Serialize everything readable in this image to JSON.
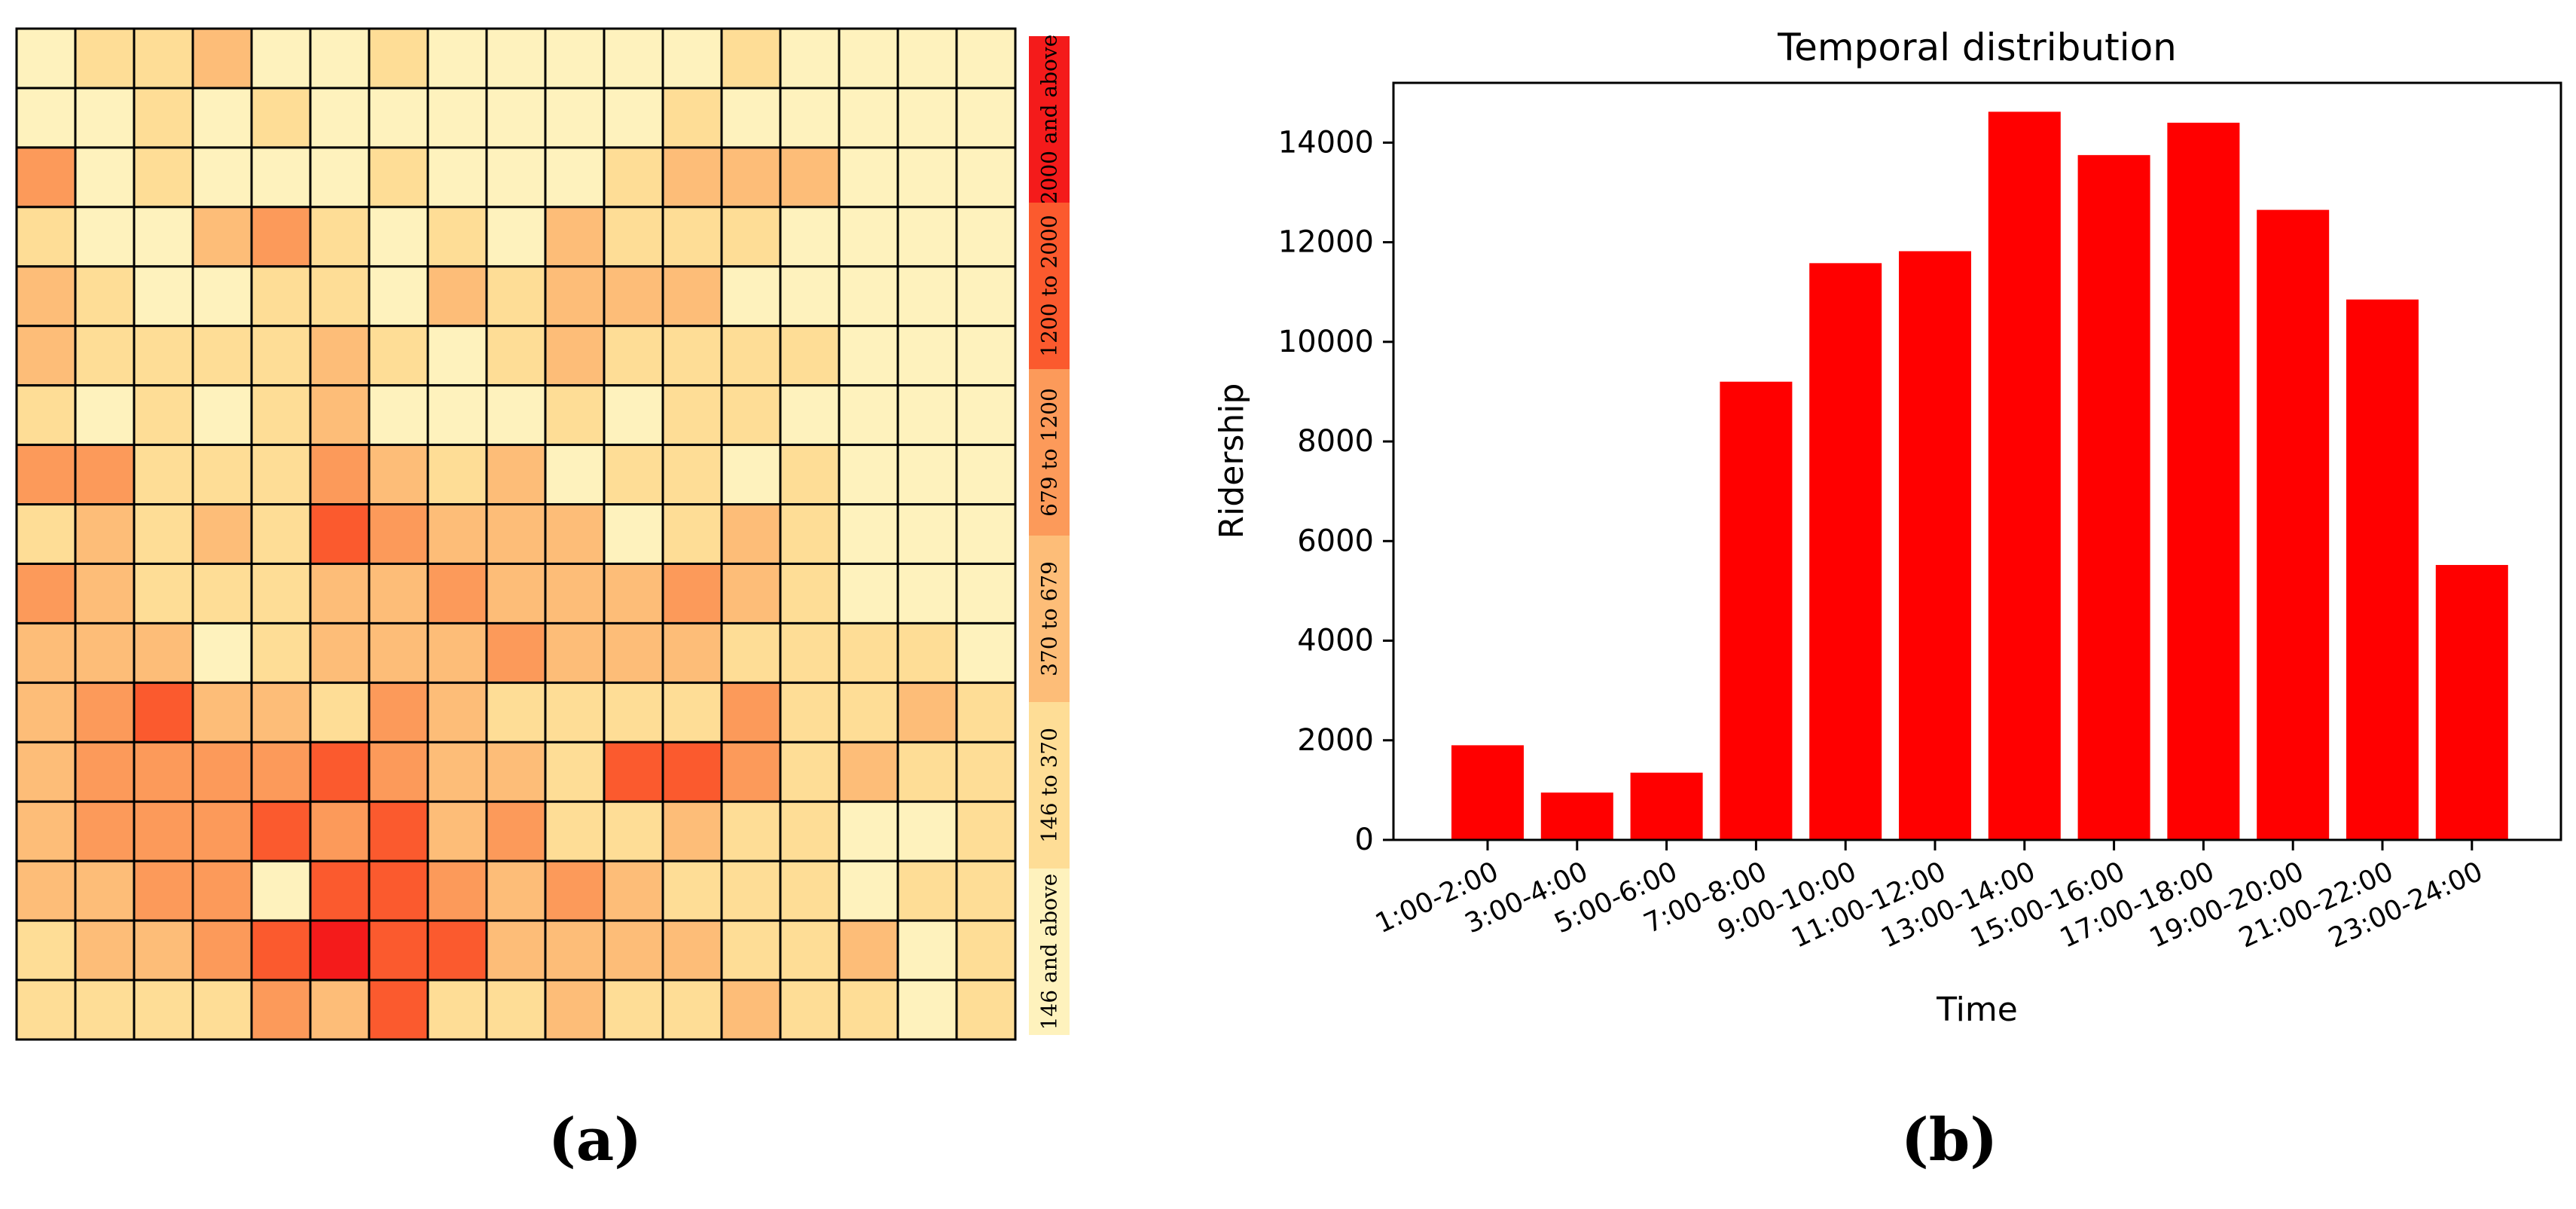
{
  "panels": {
    "a": {
      "label": "(a)",
      "chart_data": {
        "type": "heatmap",
        "title": "",
        "grid": true,
        "rows": 17,
        "cols": 17,
        "legend": {
          "placement": "right",
          "categories": [
            "2000 and above",
            "1200 to 2000",
            "679 to 1200",
            "370 to 679",
            "146 to 370",
            "146 and above"
          ],
          "colors": [
            "#f41b1b",
            "#fb5a2e",
            "#fc9a5a",
            "#fdbd78",
            "#fedd96",
            "#fef2bd"
          ]
        },
        "values": [
          [
            5,
            4,
            4,
            3,
            5,
            5,
            4,
            5,
            5,
            5,
            5,
            5,
            4,
            5,
            5,
            5,
            5
          ],
          [
            5,
            5,
            4,
            5,
            4,
            5,
            5,
            5,
            5,
            5,
            5,
            4,
            5,
            5,
            5,
            5,
            5
          ],
          [
            2,
            5,
            4,
            5,
            5,
            5,
            4,
            5,
            5,
            5,
            4,
            3,
            3,
            3,
            5,
            5,
            5
          ],
          [
            4,
            5,
            5,
            3,
            2,
            4,
            5,
            4,
            5,
            3,
            4,
            4,
            4,
            5,
            5,
            5,
            5
          ],
          [
            3,
            4,
            5,
            5,
            4,
            4,
            5,
            3,
            4,
            3,
            3,
            3,
            5,
            5,
            5,
            5,
            5
          ],
          [
            3,
            4,
            4,
            4,
            4,
            3,
            4,
            5,
            4,
            3,
            4,
            4,
            4,
            4,
            5,
            5,
            5
          ],
          [
            4,
            5,
            4,
            5,
            4,
            3,
            5,
            5,
            5,
            4,
            5,
            4,
            4,
            5,
            5,
            5,
            5
          ],
          [
            2,
            2,
            4,
            4,
            4,
            2,
            3,
            4,
            3,
            5,
            4,
            4,
            5,
            4,
            5,
            5,
            5
          ],
          [
            4,
            3,
            4,
            3,
            4,
            1,
            2,
            3,
            3,
            3,
            5,
            4,
            3,
            4,
            5,
            5,
            5
          ],
          [
            2,
            3,
            4,
            4,
            4,
            3,
            3,
            2,
            3,
            3,
            3,
            2,
            3,
            4,
            5,
            5,
            5
          ],
          [
            3,
            3,
            3,
            5,
            4,
            3,
            3,
            3,
            2,
            3,
            3,
            3,
            4,
            4,
            4,
            4,
            5
          ],
          [
            3,
            2,
            1,
            3,
            3,
            4,
            2,
            3,
            4,
            4,
            4,
            4,
            2,
            4,
            4,
            3,
            4
          ],
          [
            3,
            2,
            2,
            2,
            2,
            1,
            2,
            3,
            3,
            4,
            1,
            1,
            2,
            4,
            3,
            4,
            4
          ],
          [
            3,
            2,
            2,
            2,
            1,
            2,
            1,
            3,
            2,
            4,
            4,
            3,
            4,
            4,
            5,
            5,
            4
          ],
          [
            3,
            3,
            2,
            2,
            5,
            1,
            1,
            2,
            3,
            2,
            3,
            4,
            4,
            4,
            5,
            4,
            4
          ],
          [
            4,
            3,
            3,
            2,
            1,
            0,
            1,
            1,
            3,
            3,
            3,
            3,
            4,
            4,
            3,
            5,
            4
          ],
          [
            4,
            4,
            4,
            4,
            2,
            3,
            1,
            4,
            4,
            3,
            4,
            4,
            3,
            4,
            4,
            5,
            4
          ]
        ]
      }
    },
    "b": {
      "label": "(b)",
      "chart_data": {
        "type": "bar",
        "title": "Temporal distribution",
        "xlabel": "Time",
        "ylabel": "Ridership",
        "ylim": [
          0,
          15200
        ],
        "yticks": [
          0,
          2000,
          4000,
          6000,
          8000,
          10000,
          12000,
          14000
        ],
        "grid": false,
        "bar_color": "#ff0000",
        "categories": [
          "1:00-2:00",
          "3:00-4:00",
          "5:00-6:00",
          "7:00-8:00",
          "9:00-10:00",
          "11:00-12:00",
          "13:00-14:00",
          "15:00-16:00",
          "17:00-18:00",
          "19:00-20:00",
          "21:00-22:00",
          "23:00-24:00"
        ],
        "values": [
          1900,
          950,
          1350,
          9200,
          11580,
          11820,
          14620,
          13750,
          14400,
          12650,
          10850,
          5520
        ]
      }
    }
  }
}
